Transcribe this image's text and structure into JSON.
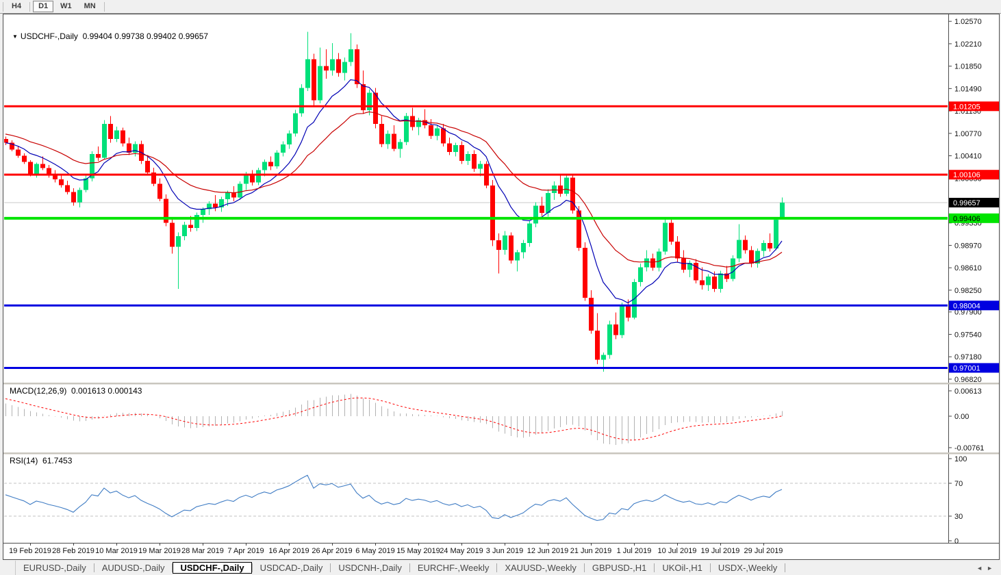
{
  "toolbar": {
    "timeframes": [
      {
        "label": "H4",
        "active": false
      },
      {
        "label": "D1",
        "active": true
      },
      {
        "label": "W1",
        "active": false
      },
      {
        "label": "MN",
        "active": false
      }
    ]
  },
  "chart": {
    "title": {
      "symbol": "USDCHF-,Daily",
      "ohlc": "0.99404 0.99738 0.99402 0.99657",
      "dropdown_icon": "▼"
    },
    "price_axis_ticks": [
      "1.02570",
      "1.02210",
      "1.01850",
      "1.01490",
      "1.01130",
      "1.00770",
      "1.00410",
      "1.00050",
      "0.99330",
      "0.98970",
      "0.98610",
      "0.98250",
      "0.97900",
      "0.97540",
      "0.97180",
      "0.96820"
    ],
    "price_markers": [
      {
        "text": "1.01205",
        "price": 1.01205,
        "bg": "#ff0000",
        "fg": "#ffffff",
        "name": "resistance-level-label"
      },
      {
        "text": "1.00106",
        "price": 1.00106,
        "bg": "#ff0000",
        "fg": "#ffffff",
        "name": "resistance-level-label"
      },
      {
        "text": "0.99657",
        "price": 0.99657,
        "bg": "#000000",
        "fg": "#ffffff",
        "name": "current-price-label"
      },
      {
        "text": "0.99406",
        "price": 0.99406,
        "bg": "#00e400",
        "fg": "#000000",
        "name": "support-level-label"
      },
      {
        "text": "0.98004",
        "price": 0.98004,
        "bg": "#0000e0",
        "fg": "#ffffff",
        "name": "support-level-label"
      },
      {
        "text": "0.97001",
        "price": 0.97001,
        "bg": "#0000e0",
        "fg": "#ffffff",
        "name": "support-level-label"
      }
    ],
    "hlines": [
      {
        "price": 1.01205,
        "color": "#ff0000",
        "width": 3
      },
      {
        "price": 1.00106,
        "color": "#ff0000",
        "width": 3
      },
      {
        "price": 0.99406,
        "color": "#00e400",
        "width": 4
      },
      {
        "price": 0.98004,
        "color": "#0000e0",
        "width": 3
      },
      {
        "price": 0.97001,
        "color": "#0000e0",
        "width": 3
      }
    ],
    "current_price_line": {
      "price": 0.99657,
      "color": "#c8c8c8"
    },
    "macd_panel": {
      "label": "MACD(12,26,9)",
      "values": "0.001613 0.000143",
      "axis_ticks": [
        "0.00613",
        "0.00",
        "-0.00761"
      ]
    },
    "rsi_panel": {
      "label": "RSI(14)",
      "value": "61.7453",
      "axis_ticks": [
        "100",
        "70",
        "30",
        "0"
      ],
      "levels": [
        70,
        30
      ]
    }
  },
  "chart_data": {
    "type": "candlestick",
    "symbol": "USDCHF",
    "timeframe": "Daily",
    "title": "USDCHF-,Daily",
    "last_ohlc": {
      "open": 0.99404,
      "high": 0.99738,
      "low": 0.99402,
      "close": 0.99657
    },
    "x_labels": [
      {
        "i": 4,
        "text": "19 Feb 2019"
      },
      {
        "i": 11,
        "text": "28 Feb 2019"
      },
      {
        "i": 18,
        "text": "10 Mar 2019"
      },
      {
        "i": 25,
        "text": "19 Mar 2019"
      },
      {
        "i": 32,
        "text": "28 Mar 2019"
      },
      {
        "i": 39,
        "text": "7 Apr 2019"
      },
      {
        "i": 46,
        "text": "16 Apr 2019"
      },
      {
        "i": 53,
        "text": "26 Apr 2019"
      },
      {
        "i": 60,
        "text": "6 May 2019"
      },
      {
        "i": 67,
        "text": "15 May 2019"
      },
      {
        "i": 74,
        "text": "24 May 2019"
      },
      {
        "i": 81,
        "text": "3 Jun 2019"
      },
      {
        "i": 88,
        "text": "12 Jun 2019"
      },
      {
        "i": 95,
        "text": "21 Jun 2019"
      },
      {
        "i": 102,
        "text": "1 Jul 2019"
      },
      {
        "i": 109,
        "text": "10 Jul 2019"
      },
      {
        "i": 116,
        "text": "19 Jul 2019"
      },
      {
        "i": 123,
        "text": "29 Jul 2019"
      }
    ],
    "candles": [
      [
        1.0068,
        1.0072,
        1.0058,
        1.0062
      ],
      [
        1.0062,
        1.0066,
        1.0048,
        1.0051
      ],
      [
        1.0051,
        1.0056,
        1.0038,
        1.0041
      ],
      [
        1.0041,
        1.0045,
        1.0028,
        1.0031
      ],
      [
        1.0031,
        1.0034,
        1.0008,
        1.0012
      ],
      [
        1.0012,
        1.003,
        1.0006,
        1.0028
      ],
      [
        1.0028,
        1.004,
        1.0018,
        1.0021
      ],
      [
        1.0021,
        1.0026,
        1.0006,
        1.001
      ],
      [
        1.001,
        1.0018,
        0.9998,
        1.0003
      ],
      [
        1.0003,
        1.001,
        0.999,
        0.9994
      ],
      [
        0.9994,
        1.0001,
        0.9979,
        0.9983
      ],
      [
        0.9983,
        0.9989,
        0.9961,
        0.9966
      ],
      [
        0.9966,
        0.999,
        0.9958,
        0.9986
      ],
      [
        0.9986,
        1.001,
        0.9982,
        1.0005
      ],
      [
        1.0005,
        1.0048,
        1.0,
        1.0044
      ],
      [
        1.0044,
        1.0056,
        1.0033,
        1.0038
      ],
      [
        1.0038,
        1.0098,
        1.0035,
        1.0092
      ],
      [
        1.0092,
        1.0105,
        1.0062,
        1.0068
      ],
      [
        1.0068,
        1.0088,
        1.0063,
        1.0082
      ],
      [
        1.0082,
        1.0086,
        1.0056,
        1.0061
      ],
      [
        1.0061,
        1.007,
        1.0042,
        1.0046
      ],
      [
        1.0046,
        1.0064,
        1.004,
        1.006
      ],
      [
        1.006,
        1.0065,
        1.0028,
        1.0033
      ],
      [
        1.0033,
        1.0042,
        1.0009,
        1.0014
      ],
      [
        1.0014,
        1.0022,
        0.9992,
        0.9996
      ],
      [
        0.9996,
        1.0005,
        0.9968,
        0.9972
      ],
      [
        0.9972,
        0.9979,
        0.9928,
        0.9933
      ],
      [
        0.9933,
        0.9939,
        0.9884,
        0.9895
      ],
      [
        0.9895,
        0.9918,
        0.9827,
        0.9912
      ],
      [
        0.9912,
        0.9935,
        0.9905,
        0.993
      ],
      [
        0.993,
        0.9944,
        0.9919,
        0.9925
      ],
      [
        0.9925,
        0.995,
        0.992,
        0.9946
      ],
      [
        0.9946,
        0.9958,
        0.9933,
        0.9955
      ],
      [
        0.9955,
        0.9968,
        0.9946,
        0.9964
      ],
      [
        0.9964,
        0.9978,
        0.9952,
        0.9958
      ],
      [
        0.9958,
        0.9975,
        0.9951,
        0.9971
      ],
      [
        0.9971,
        0.9985,
        0.996,
        0.9982
      ],
      [
        0.9982,
        0.9992,
        0.9968,
        0.9974
      ],
      [
        0.9974,
        1.0,
        0.997,
        0.9996
      ],
      [
        0.9996,
        1.0015,
        0.9986,
        1.0009
      ],
      [
        1.0009,
        1.0018,
        0.9993,
        0.9998
      ],
      [
        0.9998,
        1.0022,
        0.9994,
        1.0018
      ],
      [
        1.0018,
        1.0035,
        1.0008,
        1.0031
      ],
      [
        1.0031,
        1.004,
        1.0018,
        1.0024
      ],
      [
        1.0024,
        1.005,
        1.002,
        1.0046
      ],
      [
        1.0046,
        1.0064,
        1.004,
        1.0059
      ],
      [
        1.0059,
        1.0082,
        1.0052,
        1.0077
      ],
      [
        1.0077,
        1.0115,
        1.0072,
        1.0109
      ],
      [
        1.0109,
        1.0156,
        1.0104,
        1.015
      ],
      [
        1.015,
        1.024,
        1.0145,
        1.0196
      ],
      [
        1.0196,
        1.0205,
        1.0122,
        1.013
      ],
      [
        1.013,
        1.0215,
        1.0125,
        1.0185
      ],
      [
        1.0185,
        1.0212,
        1.0165,
        1.0178
      ],
      [
        1.0178,
        1.0222,
        1.017,
        1.0196
      ],
      [
        1.0196,
        1.0206,
        1.0168,
        1.0174
      ],
      [
        1.0174,
        1.0199,
        1.0162,
        1.0192
      ],
      [
        1.0192,
        1.0238,
        1.0185,
        1.0212
      ],
      [
        1.0212,
        1.022,
        1.015,
        1.0156
      ],
      [
        1.0156,
        1.0178,
        1.0108,
        1.0114
      ],
      [
        1.0114,
        1.0148,
        1.0106,
        1.0142
      ],
      [
        1.0142,
        1.015,
        1.0085,
        1.0092
      ],
      [
        1.0092,
        1.0105,
        1.0055,
        1.006
      ],
      [
        1.006,
        1.0082,
        1.0052,
        1.0076
      ],
      [
        1.0076,
        1.009,
        1.0048,
        1.0052
      ],
      [
        1.0052,
        1.0068,
        1.0038,
        1.0063
      ],
      [
        1.0063,
        1.011,
        1.0058,
        1.0105
      ],
      [
        1.0105,
        1.0118,
        1.0082,
        1.0087
      ],
      [
        1.0087,
        1.0102,
        1.0074,
        1.0098
      ],
      [
        1.0098,
        1.0116,
        1.0085,
        1.009
      ],
      [
        1.009,
        1.01,
        1.0068,
        1.0073
      ],
      [
        1.0073,
        1.009,
        1.0066,
        1.0085
      ],
      [
        1.0085,
        1.0092,
        1.0056,
        1.0061
      ],
      [
        1.0061,
        1.007,
        1.0042,
        1.0047
      ],
      [
        1.0047,
        1.0062,
        1.004,
        1.0058
      ],
      [
        1.0058,
        1.0064,
        1.0028,
        1.0033
      ],
      [
        1.0033,
        1.0048,
        1.0026,
        1.0044
      ],
      [
        1.0044,
        1.005,
        1.0015,
        1.002
      ],
      [
        1.002,
        1.0033,
        1.0008,
        1.0028
      ],
      [
        1.0028,
        1.0032,
        0.9989,
        0.9993
      ],
      [
        0.9993,
        1.0002,
        0.9896,
        0.9905
      ],
      [
        0.9905,
        0.9916,
        0.9852,
        0.989
      ],
      [
        0.989,
        0.992,
        0.9882,
        0.9913
      ],
      [
        0.9913,
        0.9918,
        0.9868,
        0.9873
      ],
      [
        0.9873,
        0.989,
        0.9855,
        0.9886
      ],
      [
        0.9886,
        0.9906,
        0.9876,
        0.9901
      ],
      [
        0.9901,
        0.9937,
        0.9895,
        0.9932
      ],
      [
        0.9932,
        0.9966,
        0.9926,
        0.9961
      ],
      [
        0.9961,
        0.9975,
        0.9944,
        0.9949
      ],
      [
        0.9949,
        0.9987,
        0.9943,
        0.9981
      ],
      [
        0.9981,
        1.0,
        0.997,
        0.9993
      ],
      [
        0.9993,
        1.0011,
        0.9975,
        0.998
      ],
      [
        0.998,
        1.0012,
        0.9976,
        1.0006
      ],
      [
        1.0006,
        1.001,
        0.9948,
        0.9953
      ],
      [
        0.9953,
        0.996,
        0.9888,
        0.9893
      ],
      [
        0.9893,
        0.9902,
        0.9808,
        0.9813
      ],
      [
        0.9813,
        0.9825,
        0.9755,
        0.976
      ],
      [
        0.976,
        0.9788,
        0.9706,
        0.9713
      ],
      [
        0.9713,
        0.9725,
        0.9694,
        0.9721
      ],
      [
        0.9721,
        0.9776,
        0.9715,
        0.977
      ],
      [
        0.977,
        0.9789,
        0.9746,
        0.9753
      ],
      [
        0.9753,
        0.9805,
        0.9748,
        0.9799
      ],
      [
        0.9799,
        0.981,
        0.9775,
        0.9781
      ],
      [
        0.9781,
        0.9843,
        0.9778,
        0.9838
      ],
      [
        0.9838,
        0.9868,
        0.9831,
        0.9862
      ],
      [
        0.9862,
        0.9889,
        0.9855,
        0.9876
      ],
      [
        0.9876,
        0.9884,
        0.9856,
        0.9861
      ],
      [
        0.9861,
        0.9892,
        0.9855,
        0.9887
      ],
      [
        0.9887,
        0.994,
        0.9882,
        0.9933
      ],
      [
        0.9933,
        0.9938,
        0.9898,
        0.9903
      ],
      [
        0.9903,
        0.9912,
        0.987,
        0.9876
      ],
      [
        0.9876,
        0.9889,
        0.9853,
        0.9858
      ],
      [
        0.9858,
        0.9873,
        0.9846,
        0.9869
      ],
      [
        0.9869,
        0.9875,
        0.9836,
        0.9841
      ],
      [
        0.9841,
        0.9862,
        0.9826,
        0.9833
      ],
      [
        0.9833,
        0.9851,
        0.9824,
        0.9847
      ],
      [
        0.9847,
        0.9855,
        0.9822,
        0.9827
      ],
      [
        0.9827,
        0.9856,
        0.9821,
        0.9852
      ],
      [
        0.9852,
        0.9864,
        0.9838,
        0.9843
      ],
      [
        0.9843,
        0.9881,
        0.9839,
        0.9876
      ],
      [
        0.9876,
        0.9931,
        0.987,
        0.9906
      ],
      [
        0.9906,
        0.9913,
        0.9884,
        0.9889
      ],
      [
        0.9889,
        0.9896,
        0.9862,
        0.9868
      ],
      [
        0.9868,
        0.9892,
        0.9861,
        0.9888
      ],
      [
        0.9888,
        0.9905,
        0.9879,
        0.9901
      ],
      [
        0.9901,
        0.9916,
        0.9887,
        0.9892
      ],
      [
        0.9892,
        0.9942,
        0.9889,
        0.9938
      ],
      [
        0.99404,
        0.99738,
        0.99402,
        0.99657
      ]
    ],
    "overlays": [
      {
        "name": "ma-fast",
        "type": "ema",
        "period": 10,
        "color": "#0000b4"
      },
      {
        "name": "ma-slow",
        "type": "ema",
        "period": 24,
        "color": "#c80000"
      }
    ],
    "indicators": [
      {
        "name": "MACD",
        "params": [
          12,
          26,
          9
        ],
        "current": [
          0.001613,
          0.000143
        ],
        "histogram_color": "#b2b2b2",
        "signal_color": "#ff0000",
        "ylim": [
          -0.00761,
          0.00613
        ]
      },
      {
        "name": "RSI",
        "params": [
          14
        ],
        "current": 61.7453,
        "line_color": "#3f7cc4",
        "levels": [
          70,
          30
        ],
        "ylim": [
          0,
          100
        ]
      }
    ],
    "colors": {
      "bull": "#00e07a",
      "bear": "#ff0000",
      "background": "#ffffff"
    }
  },
  "tabs": {
    "items": [
      {
        "label": "EURUSD-,Daily",
        "active": false
      },
      {
        "label": "AUDUSD-,Daily",
        "active": false
      },
      {
        "label": "USDCHF-,Daily",
        "active": true
      },
      {
        "label": "USDCAD-,Daily",
        "active": false
      },
      {
        "label": "USDCNH-,Daily",
        "active": false
      },
      {
        "label": "EURCHF-,Weekly",
        "active": false
      },
      {
        "label": "XAUUSD-,Weekly",
        "active": false
      },
      {
        "label": "GBPUSD-,H1",
        "active": false
      },
      {
        "label": "UKOil-,H1",
        "active": false
      },
      {
        "label": "USDX-,Weekly",
        "active": false
      }
    ],
    "scroll_left": "◄",
    "scroll_right": "►"
  }
}
